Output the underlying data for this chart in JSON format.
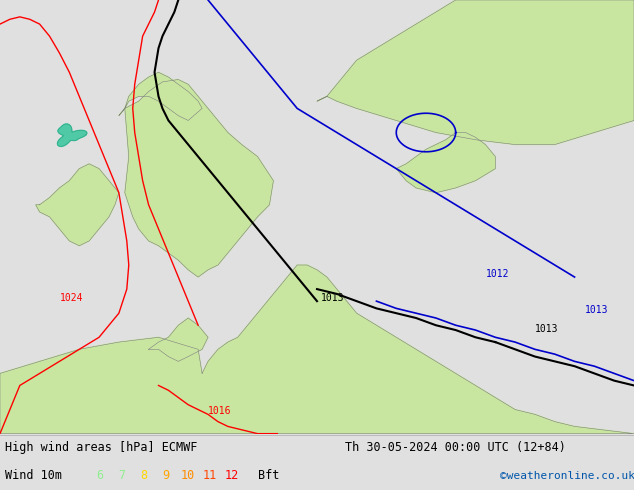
{
  "title_left": "High wind areas [hPa] ECMWF",
  "title_right": "Th 30-05-2024 00:00 UTC (12+84)",
  "wind_label": "Wind 10m",
  "bft_label": "Bft",
  "copyright": "©weatheronline.co.uk",
  "bft_values": [
    "6",
    "7",
    "8",
    "9",
    "10",
    "11",
    "12"
  ],
  "bft_colors": [
    "#90EE90",
    "#adff2f",
    "#FFD700",
    "#FFA500",
    "#FF8C00",
    "#FF4500",
    "#FF0000"
  ],
  "bg_color": "#e0e0e0",
  "map_bg": "#e0e0e0",
  "land_color": "#c8e6a0",
  "land_border": "#808080",
  "water_color": "#e0e0e0",
  "contour_red": "#ff0000",
  "contour_black": "#000000",
  "contour_blue": "#0000cc",
  "green_patch": "#40c8a0",
  "label_color_red": "#ff0000",
  "label_color_black": "#000000",
  "label_color_blue": "#0000cc",
  "xlim": [
    -12,
    20
  ],
  "ylim": [
    44,
    62
  ],
  "fig_width": 6.34,
  "fig_height": 4.9,
  "dpi": 100
}
